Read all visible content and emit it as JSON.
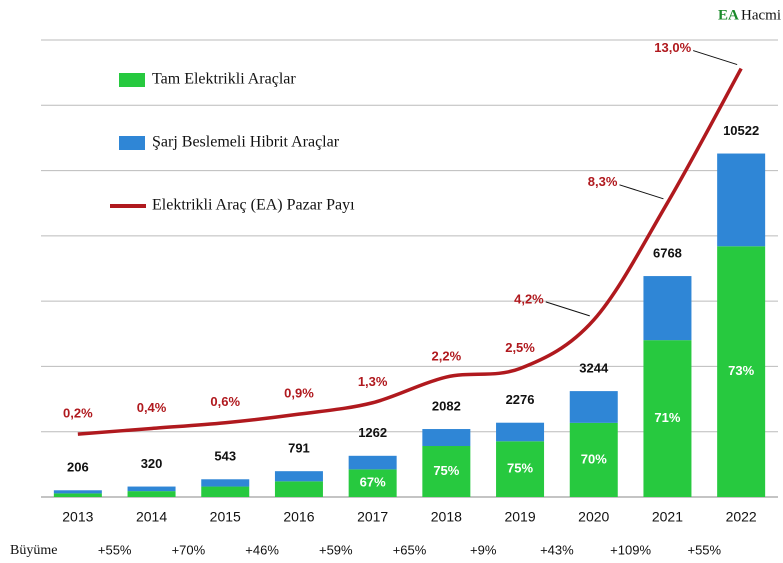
{
  "chart_data": {
    "type": "bar",
    "title": {
      "accent": "EA",
      "rest": "Hacmi"
    },
    "categories": [
      "2013",
      "2014",
      "2015",
      "2016",
      "2017",
      "2018",
      "2019",
      "2020",
      "2021",
      "2022"
    ],
    "series": [
      {
        "name": "Tam Elektrikli Araçlar",
        "color": "#27c93f",
        "values": [
          110,
          180,
          320,
          480,
          846,
          1562,
          1707,
          2271,
          4805,
          7681
        ],
        "value_labels": [
          null,
          null,
          null,
          null,
          "67%",
          "75%",
          "75%",
          "70%",
          "71%",
          "73%"
        ]
      },
      {
        "name": "Şarj Beslemeli Hibrit Araçlar",
        "color": "#2f86d6",
        "values": [
          96,
          140,
          223,
          311,
          416,
          520,
          569,
          973,
          1963,
          2841
        ]
      },
      {
        "name": "Elektrikli Araç (EA) Pazar Payı",
        "color": "#b0191e",
        "type": "line",
        "axis": "y2",
        "values": [
          0.2,
          0.4,
          0.6,
          0.9,
          1.3,
          2.2,
          2.5,
          4.2,
          8.3,
          13.0
        ],
        "value_labels": [
          "0,2%",
          "0,4%",
          "0,6%",
          "0,9%",
          "1,3%",
          "2,2%",
          "2,5%",
          "4,2%",
          "8,3%",
          "13,0%"
        ]
      }
    ],
    "totals": [
      206,
      320,
      543,
      791,
      1262,
      2082,
      2276,
      3244,
      6768,
      10522
    ],
    "growth_label": "Büyüme",
    "growth": [
      "+55%",
      "+70%",
      "+46%",
      "+59%",
      "+65%",
      "+9%",
      "+43%",
      "+109%",
      "+55%"
    ],
    "ylim": [
      0,
      14000
    ],
    "yticks": [
      0,
      2000,
      4000,
      6000,
      8000,
      10000,
      12000,
      14000
    ],
    "y2lim": [
      -2,
      14
    ],
    "grid": true
  }
}
